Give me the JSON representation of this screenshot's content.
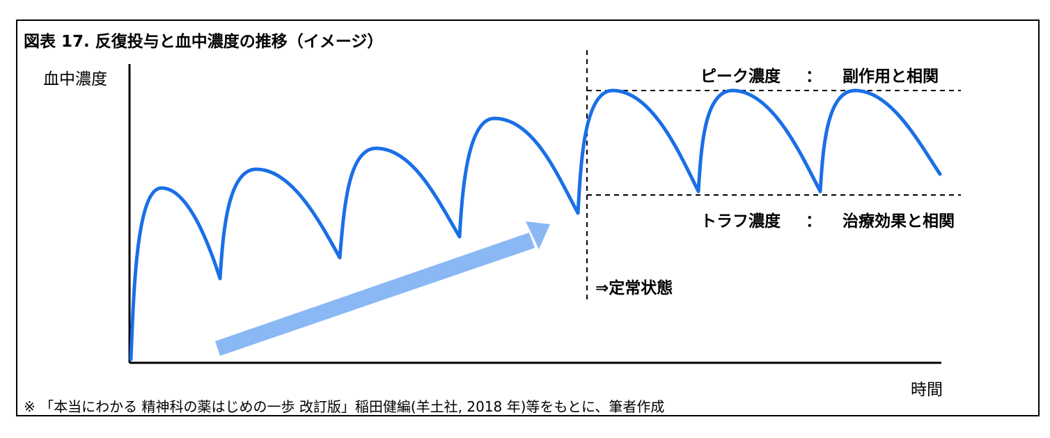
{
  "title": "図表 17. 反復投与と血中濃度の推移（イメージ）",
  "axes": {
    "y_label": "血中濃度",
    "x_label": "時間"
  },
  "labels": {
    "peak": {
      "name": "ピーク濃度",
      "separator": "：",
      "description": "副作用と相関"
    },
    "trough": {
      "name": "トラフ濃度",
      "separator": "：",
      "description": "治療効果と相関"
    },
    "steady_state": "⇒定常状態"
  },
  "source_note": "※ 「本当にわかる 精神科の薬はじめの一歩 改訂版」稲田健編(羊土社, 2018 年)等をもとに、筆者作成",
  "colors": {
    "curve": "#1a6fe6",
    "arrow": "#8ab8f5",
    "axis": "#000000",
    "dashed": "#000000"
  }
}
